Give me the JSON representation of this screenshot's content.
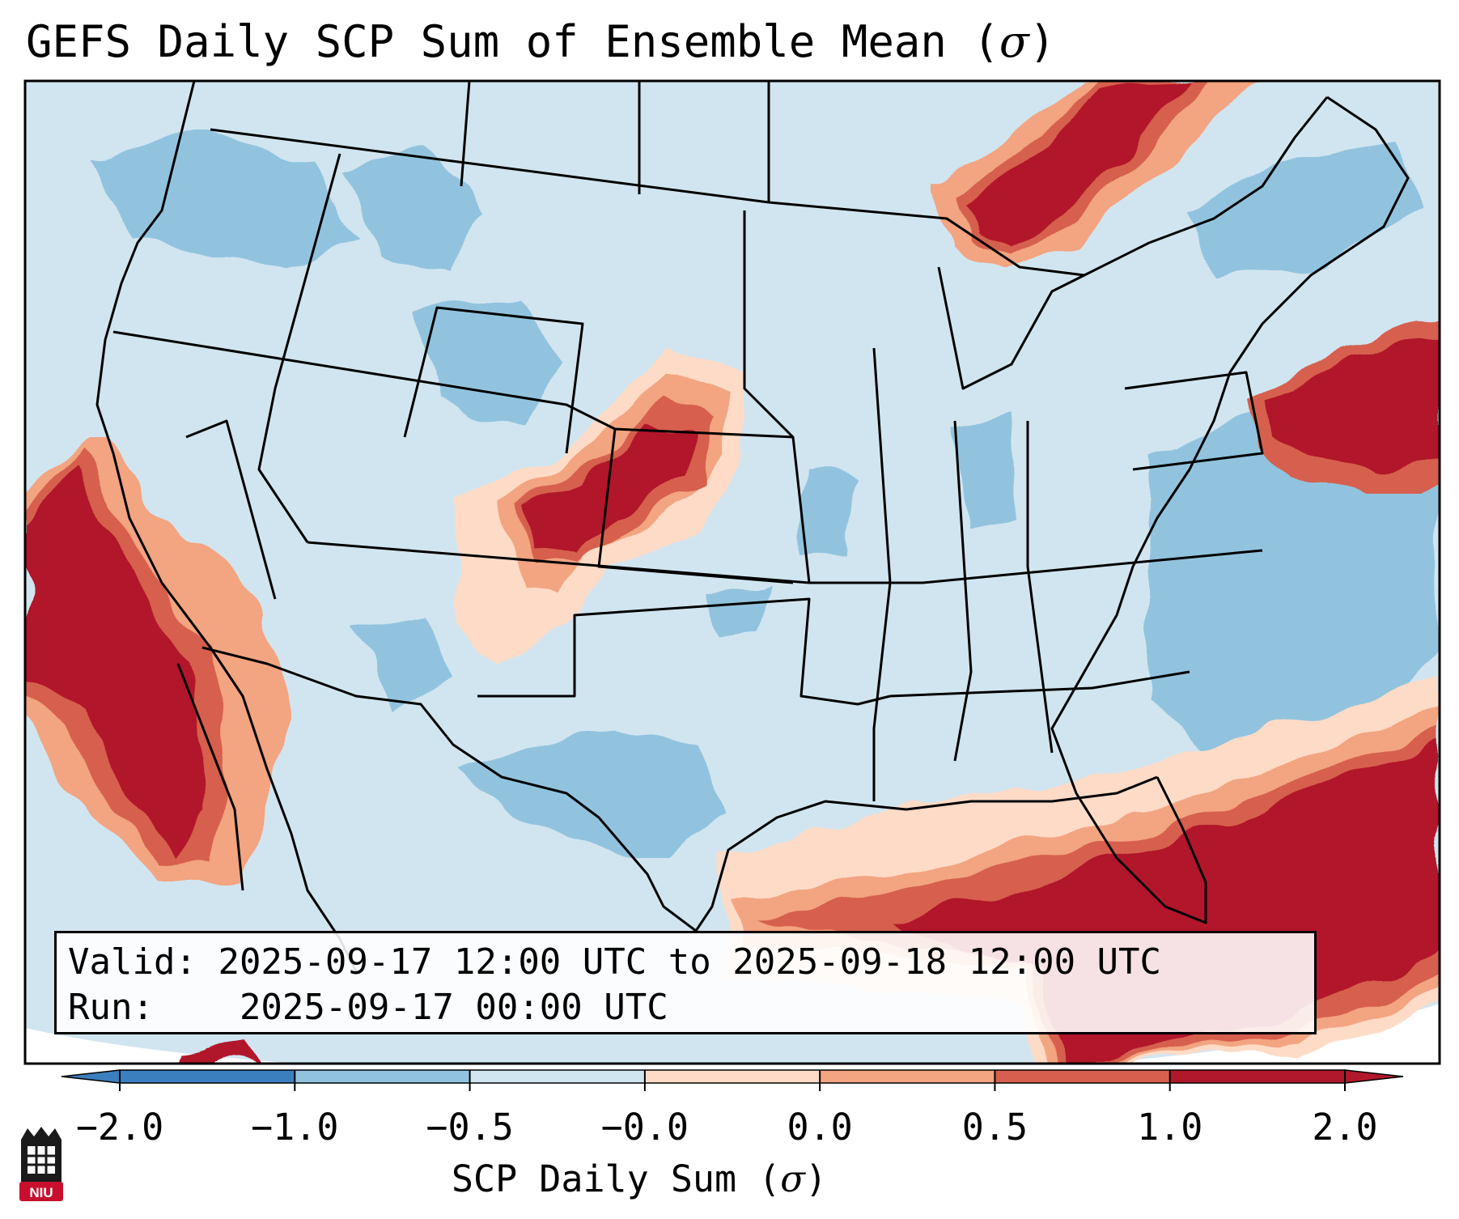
{
  "title": {
    "text": "GEFS Daily SCP Sum of Ensemble Mean (",
    "symbol": "σ",
    "close": ")"
  },
  "info": {
    "valid_label": "Valid:",
    "valid_value": "2025-09-17 12:00 UTC to 2025-09-18 12:00 UTC",
    "run_label": "Run:",
    "run_value": "2025-09-17 00:00 UTC"
  },
  "colorbar": {
    "ticks": [
      "−2.0",
      "−1.0",
      "−0.5",
      "−0.0",
      "0.0",
      "0.5",
      "1.0",
      "2.0"
    ],
    "colors": [
      "#3b7fbf",
      "#92c3de",
      "#d1e5f0",
      "#fddbc7",
      "#f3a481",
      "#d6604d",
      "#b2182b"
    ],
    "label_text": "SCP Daily Sum (",
    "label_symbol": "σ",
    "label_close": ")"
  },
  "map": {
    "background": "#d1e5f0",
    "anomaly_regions": [
      {
        "name": "pacific-west-coast",
        "level": "2.0"
      },
      {
        "name": "central-plains",
        "level": "2.0"
      },
      {
        "name": "upper-great-lakes",
        "level": "2.0"
      },
      {
        "name": "northeast-atlantic",
        "level": "2.0"
      },
      {
        "name": "gulf-of-mexico-florida",
        "level": "2.0"
      },
      {
        "name": "western-atlantic",
        "level": "-1.0"
      }
    ]
  },
  "logo": {
    "text": "NIU"
  }
}
